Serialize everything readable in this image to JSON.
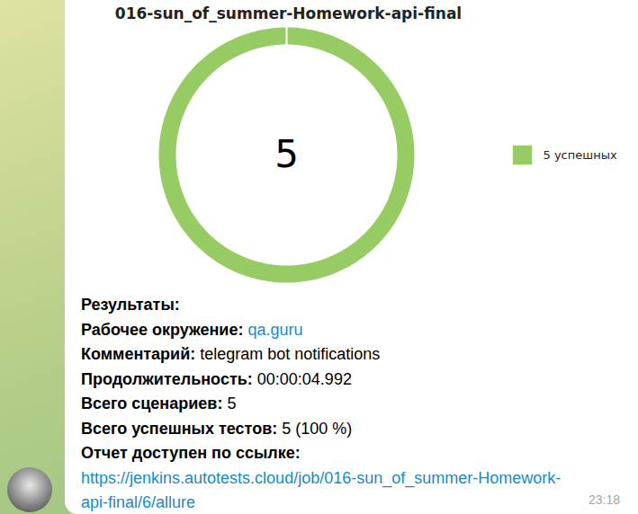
{
  "chart_data": {
    "type": "donut",
    "title": "016-sun_of_summer-Homework-api-final",
    "categories": [
      "5 успешных"
    ],
    "values": [
      5
    ],
    "colors": [
      "#97cc64"
    ],
    "total": 5,
    "legend": "right"
  },
  "message": {
    "heading": "Результаты:",
    "fields": [
      {
        "label": "Рабочее окружение:",
        "value": "qa.guru",
        "link": true
      },
      {
        "label": "Комментарий:",
        "value": "telegram bot notifications",
        "link": false
      },
      {
        "label": "Продолжительность:",
        "value": "00:00:04.992",
        "link": false
      },
      {
        "label": "Всего сценариев:",
        "value": "5",
        "link": false
      },
      {
        "label": "Всего успешных тестов:",
        "value": "5 (100 %)",
        "link": false
      }
    ],
    "link_label": "Отчет доступен по ссылке:",
    "link": "https://jenkins.autotests.cloud/job/016-sun_of_summer-Homework-api-final/6/allure",
    "time": "23:18"
  }
}
